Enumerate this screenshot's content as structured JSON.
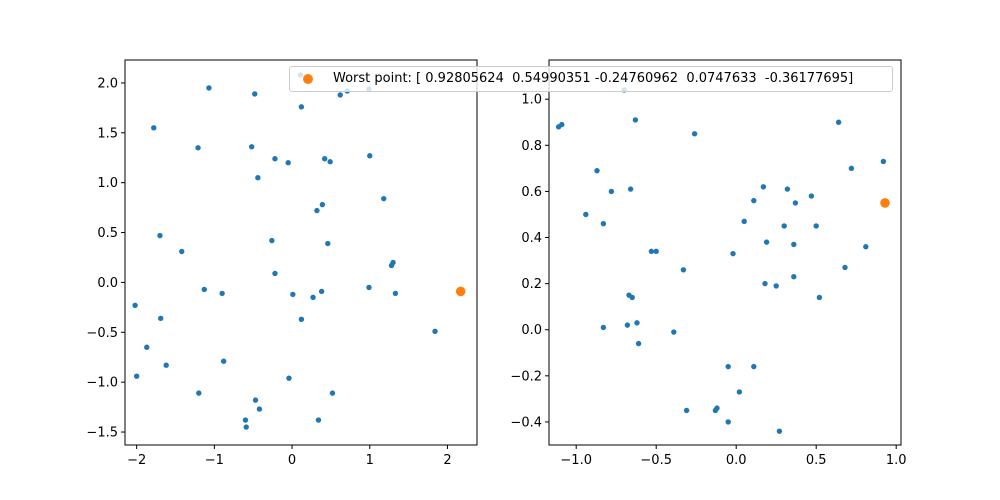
{
  "colors": {
    "series": "#1f77b4",
    "worst": "#ff7f0e",
    "axis": "#000000"
  },
  "legend": {
    "label": "Worst point: [ 0.92805624  0.54990351 -0.24760962  0.0747633  -0.36177695]"
  },
  "chart_data": [
    {
      "type": "scatter",
      "xlim": [
        -2.15,
        2.38
      ],
      "ylim": [
        -1.63,
        2.23
      ],
      "xticks": [
        -2,
        -1,
        0,
        1,
        2
      ],
      "yticks": [
        -1.5,
        -1.0,
        -0.5,
        0.0,
        0.5,
        1.0,
        1.5,
        2.0
      ],
      "xtick_labels": [
        "−2",
        "−1",
        "0",
        "1",
        "2"
      ],
      "ytick_labels": [
        "−1.5",
        "−1.0",
        "−0.5",
        "0.0",
        "0.5",
        "1.0",
        "1.5",
        "2.0"
      ],
      "grid": false,
      "points": [
        [
          -2.02,
          -0.23
        ],
        [
          -2.0,
          -0.94
        ],
        [
          -1.87,
          -0.65
        ],
        [
          -1.78,
          1.55
        ],
        [
          -1.7,
          0.47
        ],
        [
          -1.69,
          -0.36
        ],
        [
          -1.62,
          -0.83
        ],
        [
          -1.42,
          0.31
        ],
        [
          -1.21,
          1.35
        ],
        [
          -1.2,
          -1.11
        ],
        [
          -1.13,
          -0.07
        ],
        [
          -1.07,
          1.95
        ],
        [
          -0.9,
          -0.11
        ],
        [
          -0.88,
          -0.79
        ],
        [
          -0.6,
          -1.38
        ],
        [
          -0.59,
          -1.45
        ],
        [
          -0.52,
          1.36
        ],
        [
          -0.48,
          1.89
        ],
        [
          -0.47,
          -1.18
        ],
        [
          -0.44,
          1.05
        ],
        [
          -0.42,
          -1.27
        ],
        [
          -0.26,
          0.42
        ],
        [
          -0.22,
          1.24
        ],
        [
          -0.22,
          0.09
        ],
        [
          -0.05,
          1.2
        ],
        [
          -0.04,
          -0.96
        ],
        [
          0.01,
          -0.12
        ],
        [
          0.11,
          2.08
        ],
        [
          0.12,
          1.76
        ],
        [
          0.12,
          -0.37
        ],
        [
          0.27,
          -0.15
        ],
        [
          0.32,
          0.72
        ],
        [
          0.34,
          -1.38
        ],
        [
          0.38,
          -0.09
        ],
        [
          0.39,
          0.78
        ],
        [
          0.42,
          1.24
        ],
        [
          0.46,
          0.39
        ],
        [
          0.49,
          1.21
        ],
        [
          0.52,
          -1.11
        ],
        [
          0.62,
          1.88
        ],
        [
          0.71,
          1.92
        ],
        [
          0.99,
          1.94
        ],
        [
          1.0,
          1.27
        ],
        [
          0.99,
          -0.05
        ],
        [
          1.18,
          0.84
        ],
        [
          1.28,
          0.17
        ],
        [
          1.3,
          0.2
        ],
        [
          1.33,
          -0.11
        ],
        [
          1.84,
          -0.49
        ]
      ],
      "worst_point": [
        2.17,
        -0.09
      ]
    },
    {
      "type": "scatter",
      "xlim": [
        -1.17,
        1.03
      ],
      "ylim": [
        -0.5,
        1.17
      ],
      "xticks": [
        -1.0,
        -0.5,
        0.0,
        0.5,
        1.0
      ],
      "yticks": [
        -0.4,
        -0.2,
        0.0,
        0.2,
        0.4,
        0.6,
        0.8,
        1.0
      ],
      "xtick_labels": [
        "−1.0",
        "−0.5",
        "0.0",
        "0.5",
        "1.0"
      ],
      "ytick_labels": [
        "−0.4",
        "−0.2",
        "0.0",
        "0.2",
        "0.4",
        "0.6",
        "0.8",
        "1.0"
      ],
      "grid": false,
      "points": [
        [
          -1.11,
          0.88
        ],
        [
          -1.09,
          0.89
        ],
        [
          -0.94,
          0.5
        ],
        [
          -0.87,
          0.69
        ],
        [
          -0.83,
          0.46
        ],
        [
          -0.83,
          0.01
        ],
        [
          -0.78,
          0.6
        ],
        [
          -0.7,
          1.04
        ],
        [
          -0.68,
          0.02
        ],
        [
          -0.67,
          0.15
        ],
        [
          -0.66,
          0.61
        ],
        [
          -0.65,
          0.14
        ],
        [
          -0.63,
          0.91
        ],
        [
          -0.62,
          0.03
        ],
        [
          -0.61,
          -0.06
        ],
        [
          -0.53,
          0.34
        ],
        [
          -0.5,
          0.34
        ],
        [
          -0.39,
          -0.01
        ],
        [
          -0.33,
          0.26
        ],
        [
          -0.31,
          -0.35
        ],
        [
          -0.26,
          0.85
        ],
        [
          -0.13,
          -0.35
        ],
        [
          -0.12,
          -0.34
        ],
        [
          -0.05,
          -0.4
        ],
        [
          -0.05,
          -0.16
        ],
        [
          -0.02,
          0.33
        ],
        [
          0.02,
          -0.27
        ],
        [
          0.05,
          0.47
        ],
        [
          0.11,
          0.56
        ],
        [
          0.11,
          -0.16
        ],
        [
          0.17,
          0.62
        ],
        [
          0.18,
          0.2
        ],
        [
          0.19,
          0.38
        ],
        [
          0.25,
          0.19
        ],
        [
          0.27,
          -0.44
        ],
        [
          0.3,
          0.45
        ],
        [
          0.32,
          0.61
        ],
        [
          0.36,
          0.37
        ],
        [
          0.36,
          0.23
        ],
        [
          0.37,
          0.55
        ],
        [
          0.47,
          0.58
        ],
        [
          0.5,
          0.45
        ],
        [
          0.52,
          0.14
        ],
        [
          0.64,
          0.9
        ],
        [
          0.68,
          0.27
        ],
        [
          0.72,
          0.7
        ],
        [
          0.81,
          0.36
        ],
        [
          0.92,
          0.73
        ]
      ],
      "worst_point": [
        0.93,
        0.55
      ]
    }
  ]
}
